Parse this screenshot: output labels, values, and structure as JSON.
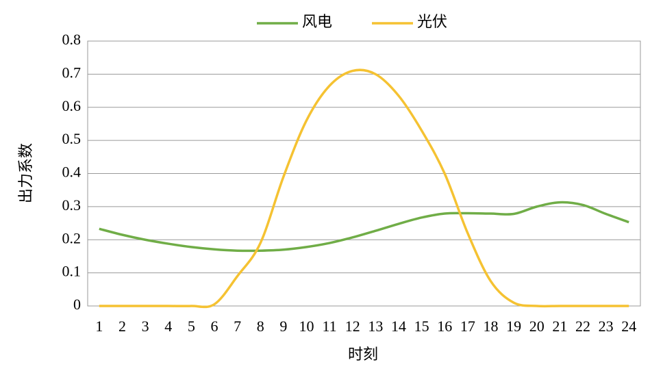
{
  "chart_data": {
    "type": "line",
    "x_label": "时刻",
    "y_label": "出力系数",
    "categories": [
      "1",
      "2",
      "3",
      "4",
      "5",
      "6",
      "7",
      "8",
      "9",
      "10",
      "11",
      "12",
      "13",
      "14",
      "15",
      "16",
      "17",
      "18",
      "19",
      "20",
      "21",
      "22",
      "23",
      "24"
    ],
    "series": [
      {
        "name": "风电",
        "color": "#70ad47",
        "values": [
          0.233,
          0.215,
          0.2,
          0.188,
          0.178,
          0.171,
          0.167,
          0.167,
          0.17,
          0.178,
          0.19,
          0.207,
          0.227,
          0.248,
          0.267,
          0.279,
          0.28,
          0.279,
          0.278,
          0.3,
          0.313,
          0.305,
          0.278,
          0.253
        ]
      },
      {
        "name": "光伏",
        "color": "#f5c232",
        "values": [
          0,
          0,
          0,
          0,
          0,
          0.005,
          0.09,
          0.19,
          0.39,
          0.56,
          0.665,
          0.71,
          0.7,
          0.635,
          0.53,
          0.4,
          0.22,
          0.075,
          0.01,
          0,
          0,
          0,
          0,
          0
        ]
      }
    ],
    "ylim": [
      0,
      0.8
    ],
    "yticks": [
      0,
      0.1,
      0.2,
      0.3,
      0.4,
      0.5,
      0.6,
      0.7,
      0.8
    ],
    "grid": true,
    "smooth": true,
    "legend": "top"
  }
}
